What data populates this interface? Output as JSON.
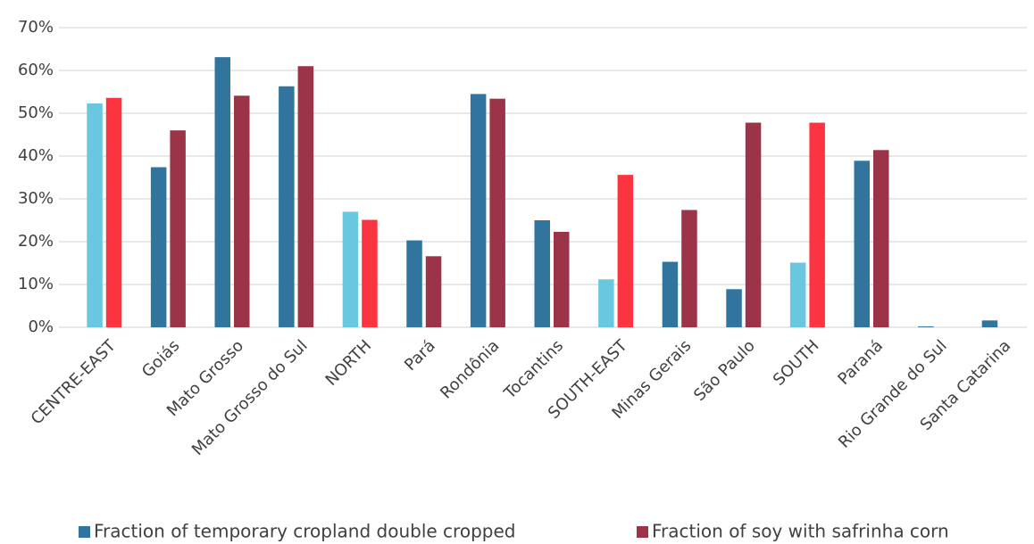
{
  "chart_data": {
    "type": "bar",
    "categories": [
      "CENTRE-EAST",
      "Goiás",
      "Mato Grosso",
      "Mato Grosso do Sul",
      "NORTH",
      "Pará",
      "Rondônia",
      "Tocantins",
      "SOUTH-EAST",
      "Minas Gerais",
      "São Paulo",
      "SOUTH",
      "Paraná",
      "Rio Grande do Sul",
      "Santa Catarina"
    ],
    "series": [
      {
        "name": "Fraction of temporary cropland double cropped",
        "color": "#31759f",
        "colors": [
          "#69c8e0",
          "#31759f",
          "#31759f",
          "#31759f",
          "#69c8e0",
          "#31759f",
          "#31759f",
          "#31759f",
          "#69c8e0",
          "#31759f",
          "#31759f",
          "#69c8e0",
          "#31759f",
          "#31759f",
          "#31759f"
        ],
        "values": [
          52.3,
          37.4,
          63.1,
          56.3,
          27.0,
          20.3,
          54.5,
          25.0,
          11.2,
          15.3,
          8.9,
          15.1,
          38.9,
          0.2,
          1.6
        ]
      },
      {
        "name": "Fraction of soy with safrinha corn",
        "color": "#9b3448",
        "colors": [
          "#fb3442",
          "#9b3448",
          "#9b3448",
          "#9b3448",
          "#fb3442",
          "#9b3448",
          "#9b3448",
          "#9b3448",
          "#fb3442",
          "#9b3448",
          "#9b3448",
          "#fb3442",
          "#9b3448",
          "#9b3448",
          "#9b3448"
        ],
        "values": [
          53.6,
          46.0,
          54.1,
          61.0,
          25.1,
          16.6,
          53.4,
          22.3,
          35.6,
          27.4,
          47.8,
          47.8,
          41.4,
          0,
          0
        ]
      }
    ],
    "ylim": [
      0,
      70
    ],
    "yticks": [
      {
        "value": 0,
        "label": "0%"
      },
      {
        "value": 10,
        "label": "10%"
      },
      {
        "value": 20,
        "label": "20%"
      },
      {
        "value": 30,
        "label": "30%"
      },
      {
        "value": 40,
        "label": "40%"
      },
      {
        "value": 50,
        "label": "50%"
      },
      {
        "value": 60,
        "label": "60%"
      },
      {
        "value": 70,
        "label": "70%"
      }
    ],
    "grid": true,
    "legend": "bottom"
  }
}
